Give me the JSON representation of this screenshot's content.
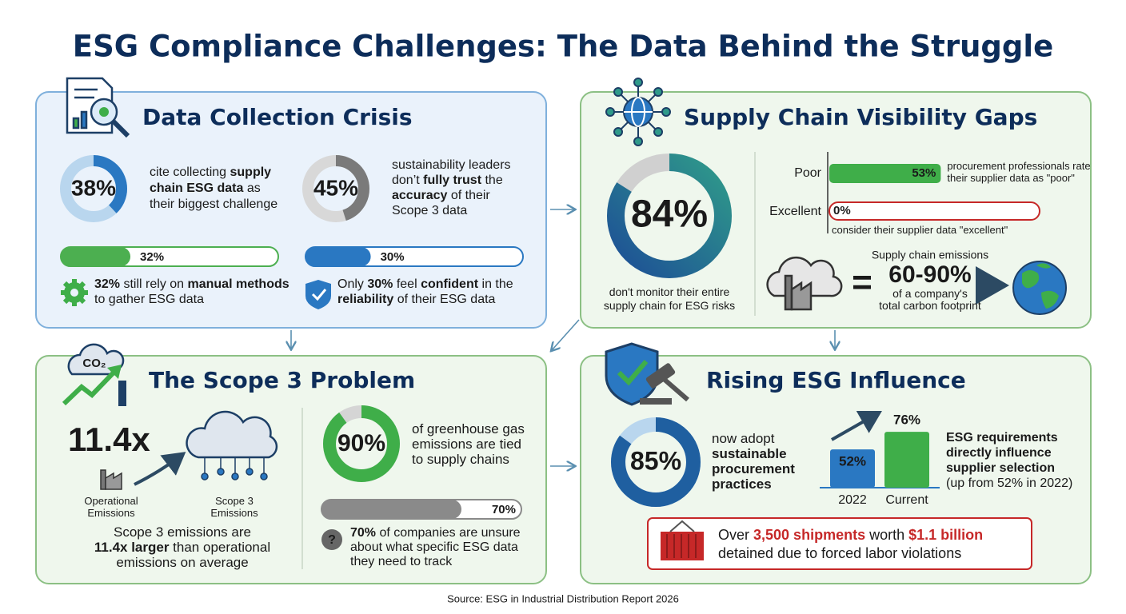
{
  "title": "ESG Compliance Challenges: The Data Behind the Struggle",
  "source": "Source: ESG in Industrial Distribution Report 2026",
  "data_collection": {
    "heading": "Data Collection Crisis",
    "stat_1": {
      "value": 38,
      "label": "38%",
      "text": [
        [
          "cite collecting ",
          {
            "bold": "supply"
          }
        ],
        [
          {
            "bold": "chain ESG data"
          },
          " as"
        ],
        [
          "their biggest challenge"
        ]
      ]
    },
    "stat_2": {
      "value": 45,
      "label": "45%",
      "text": [
        [
          "sustainability leaders"
        ],
        [
          "don’t ",
          {
            "bold": "fully trust"
          },
          " the"
        ],
        [
          {
            "bold": "accuracy"
          },
          " of their"
        ],
        [
          "Scope 3 data"
        ]
      ]
    },
    "bar_1": {
      "value": 32,
      "label": "32%",
      "text": [
        [
          {
            "bold": "32%"
          },
          " still rely on ",
          {
            "bold": "manual methods"
          }
        ],
        [
          "to gather ESG data"
        ]
      ]
    },
    "bar_2": {
      "value": 30,
      "label": "30%",
      "text": [
        [
          "Only ",
          {
            "bold": "30%"
          },
          " feel ",
          {
            "bold": "confident"
          },
          " in the"
        ],
        [
          {
            "bold": "reliability"
          },
          " of their ESG data"
        ]
      ]
    }
  },
  "supply_chain": {
    "heading": "Supply Chain Visibility Gaps",
    "donut": {
      "value": 84,
      "label": "84%",
      "text": [
        [
          "don't monitor their entire"
        ],
        [
          "supply chain for ESG risks"
        ]
      ]
    },
    "ratings": [
      {
        "category": "Poor",
        "value": 53,
        "label": "53%",
        "text": [
          [
            "procurement professionals rate"
          ],
          [
            "their supplier data as \"poor\""
          ]
        ]
      },
      {
        "category": "Excellent",
        "value": 0,
        "label": "0%",
        "text": [
          [
            "consider their supplier data \"excellent\""
          ]
        ]
      }
    ],
    "emissions": {
      "caption": "Supply chain emissions",
      "range": "60-90%",
      "text": [
        [
          "of a company's"
        ],
        [
          "total carbon footprint"
        ]
      ]
    }
  },
  "scope3": {
    "heading": "The Scope 3 Problem",
    "multiple": "11.4x",
    "operational": [
      [
        "Operational"
      ],
      [
        "Emissions"
      ]
    ],
    "scope3_label": [
      [
        "Scope 3"
      ],
      [
        "Emissions"
      ]
    ],
    "text": [
      [
        "Scope 3 emissions are"
      ],
      [
        {
          "bold": "11.4x larger"
        },
        " than operational"
      ],
      [
        "emissions on average"
      ]
    ],
    "donut": {
      "value": 90,
      "label": "90%",
      "text": [
        [
          "of greenhouse gas"
        ],
        [
          "emissions are tied"
        ],
        [
          "to supply chains"
        ]
      ]
    },
    "bar": {
      "value": 70,
      "label": "70%",
      "text": [
        [
          {
            "bold": "70%"
          },
          " of companies are unsure"
        ],
        [
          "about what specific ESG data"
        ],
        [
          "they need to track"
        ]
      ]
    }
  },
  "influence": {
    "heading": "Rising ESG Influence",
    "donut": {
      "value": 85,
      "label": "85%",
      "text": [
        [
          "now adopt"
        ],
        [
          {
            "bold": "sustainable"
          }
        ],
        [
          {
            "bold": "procurement"
          }
        ],
        [
          {
            "bold": "practices"
          }
        ]
      ]
    },
    "bars": [
      {
        "category": "2022",
        "value": 52,
        "label": "52%"
      },
      {
        "category": "Current",
        "value": 76,
        "label": "76%"
      }
    ],
    "text": [
      [
        {
          "bold": "ESG requirements"
        }
      ],
      [
        {
          "bold": "directly influence"
        }
      ],
      [
        {
          "bold": "supplier selection"
        }
      ],
      [
        "(up from 52% in 2022)"
      ]
    ],
    "callout": [
      [
        "Over ",
        {
          "accent": "3,500 shipments"
        },
        " worth ",
        {
          "accent": "$1.1 billion"
        }
      ],
      [
        "detained due to forced labor violations"
      ]
    ]
  }
}
